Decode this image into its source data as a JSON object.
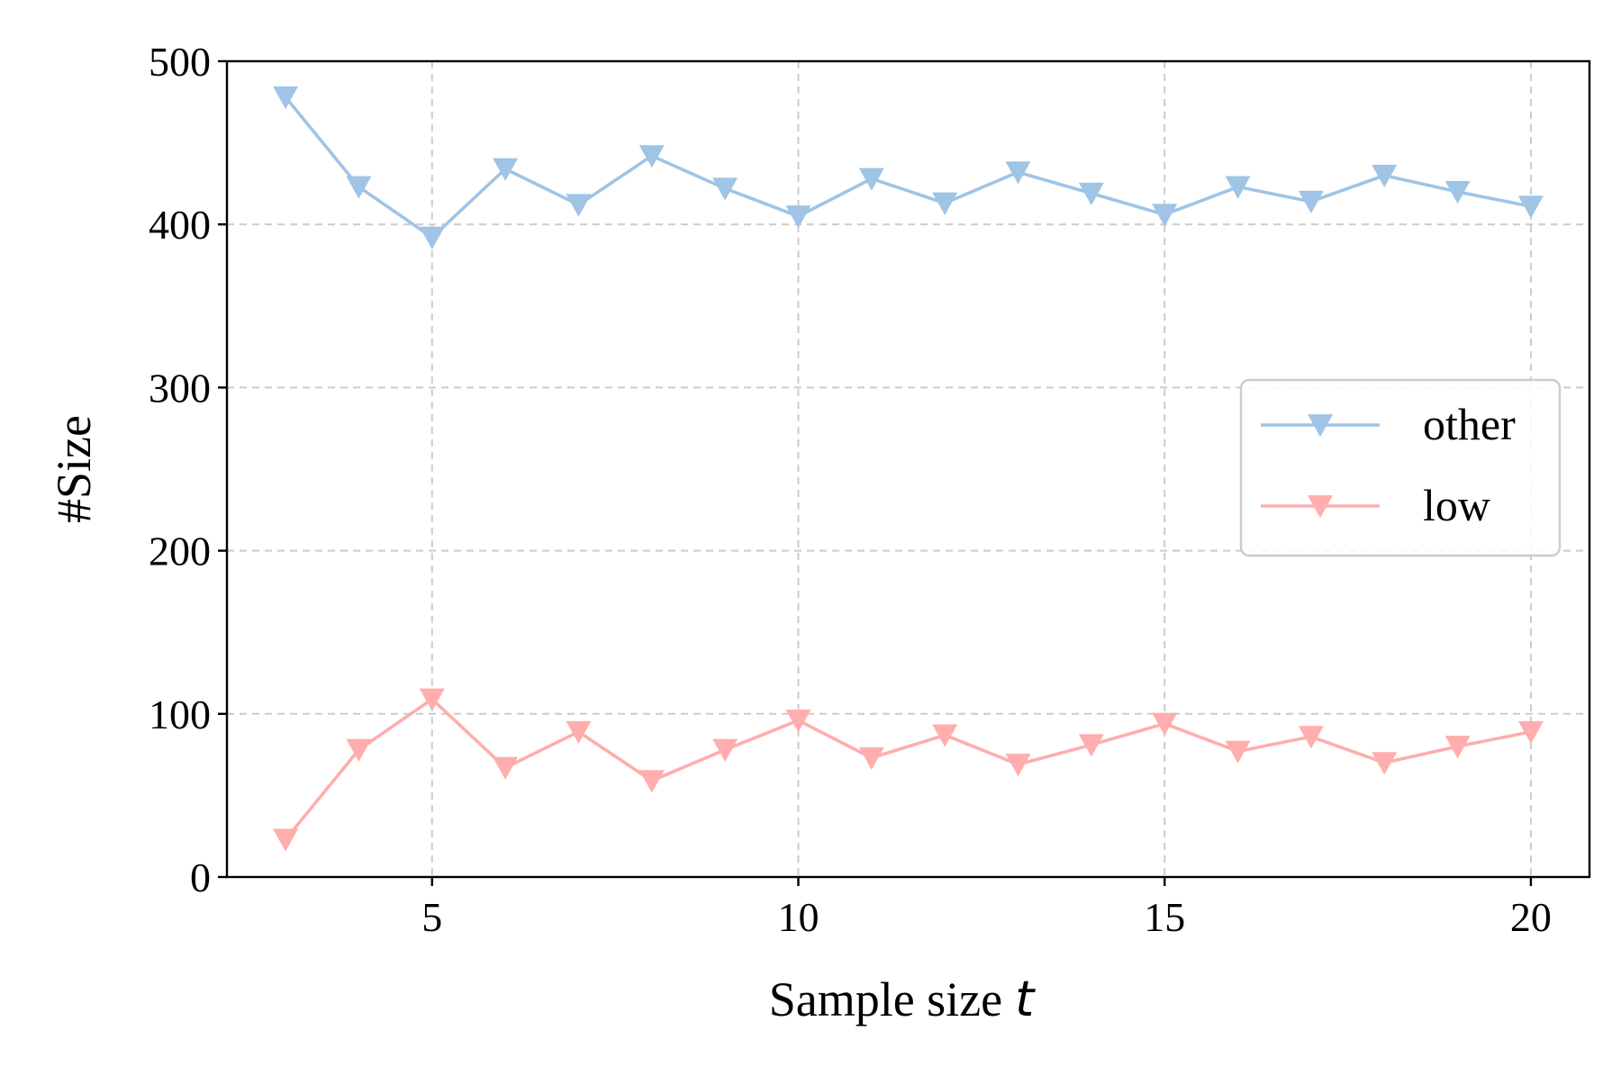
{
  "chart_data": {
    "type": "line",
    "xlabel": "Sample size",
    "xlabel_var": "t",
    "ylabel": "#Size",
    "xlim": [
      2.2,
      20.8
    ],
    "ylim": [
      0,
      500
    ],
    "xticks": [
      5,
      10,
      15,
      20
    ],
    "yticks": [
      0,
      100,
      200,
      300,
      400,
      500
    ],
    "grid": true,
    "grid_style": "dashed",
    "legend_position": "center-right",
    "marker": "triangle-down",
    "x": [
      3,
      4,
      5,
      6,
      7,
      8,
      9,
      10,
      11,
      12,
      13,
      14,
      15,
      16,
      17,
      18,
      19,
      20
    ],
    "series": [
      {
        "name": "other",
        "color": "#9fc4e5",
        "values": [
          478,
          423,
          392,
          434,
          412,
          442,
          422,
          405,
          428,
          413,
          432,
          419,
          406,
          423,
          414,
          430,
          420,
          411
        ]
      },
      {
        "name": "low",
        "color": "#ffadad",
        "values": [
          23,
          78,
          109,
          67,
          89,
          59,
          78,
          96,
          73,
          87,
          69,
          81,
          94,
          77,
          86,
          70,
          80,
          89
        ]
      }
    ]
  }
}
